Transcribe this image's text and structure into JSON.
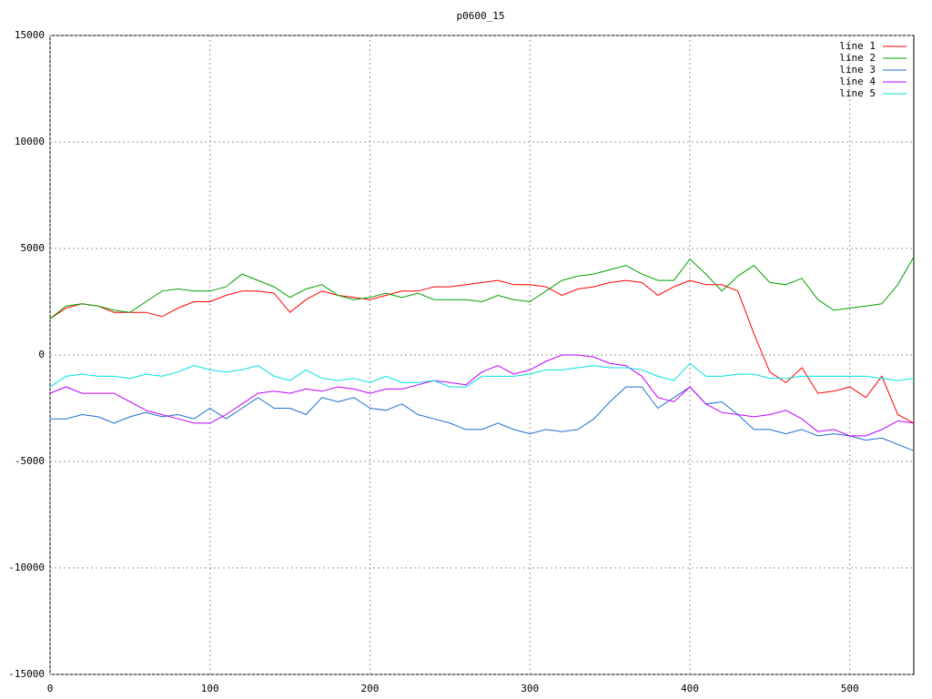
{
  "chart_data": {
    "type": "line",
    "title": "p0600_15",
    "x": [
      0,
      10,
      20,
      30,
      40,
      50,
      60,
      70,
      80,
      90,
      100,
      110,
      120,
      130,
      140,
      150,
      160,
      170,
      180,
      190,
      200,
      210,
      220,
      230,
      240,
      250,
      260,
      270,
      280,
      290,
      300,
      310,
      320,
      330,
      340,
      350,
      360,
      370,
      380,
      390,
      400,
      410,
      420,
      430,
      440,
      450,
      460,
      470,
      480,
      490,
      500,
      510,
      520,
      530,
      540
    ],
    "series": [
      {
        "name": "line 1",
        "color": "#ff0000",
        "values": [
          1700,
          2200,
          2400,
          2300,
          2000,
          2000,
          2000,
          1800,
          2200,
          2500,
          2500,
          2800,
          3000,
          3000,
          2900,
          2000,
          2600,
          3000,
          2800,
          2700,
          2600,
          2800,
          3000,
          3000,
          3200,
          3200,
          3300,
          3400,
          3500,
          3300,
          3300,
          3200,
          2800,
          3100,
          3200,
          3400,
          3500,
          3400,
          2800,
          3200,
          3500,
          3300,
          3300,
          3000,
          1000,
          -800,
          -1300,
          -600,
          -1800,
          -1700,
          -1500,
          -2000,
          -1000,
          -2800,
          -3200
        ]
      },
      {
        "name": "line 2",
        "color": "#00a000",
        "values": [
          1700,
          2300,
          2400,
          2300,
          2100,
          2000,
          2500,
          3000,
          3100,
          3000,
          3000,
          3200,
          3800,
          3500,
          3200,
          2700,
          3100,
          3300,
          2800,
          2600,
          2700,
          2900,
          2700,
          2900,
          2600,
          2600,
          2600,
          2500,
          2800,
          2600,
          2500,
          3000,
          3500,
          3700,
          3800,
          4000,
          4200,
          3800,
          3500,
          3500,
          4500,
          3800,
          3000,
          3700,
          4200,
          3400,
          3300,
          3600,
          2600,
          2100,
          2200,
          2300,
          2400,
          3300,
          4600
        ]
      },
      {
        "name": "line 3",
        "color": "#1e6ed2",
        "values": [
          -3000,
          -3000,
          -2800,
          -2900,
          -3200,
          -2900,
          -2700,
          -2900,
          -2800,
          -3000,
          -2500,
          -3000,
          -2500,
          -2000,
          -2500,
          -2500,
          -2800,
          -2000,
          -2200,
          -2000,
          -2500,
          -2600,
          -2300,
          -2800,
          -3000,
          -3200,
          -3500,
          -3500,
          -3200,
          -3500,
          -3700,
          -3500,
          -3600,
          -3500,
          -3000,
          -2200,
          -1500,
          -1500,
          -2500,
          -2000,
          -1500,
          -2300,
          -2200,
          -2800,
          -3500,
          -3500,
          -3700,
          -3500,
          -3800,
          -3700,
          -3800,
          -4000,
          -3900,
          -4200,
          -4500
        ]
      },
      {
        "name": "line 4",
        "color": "#c000ff",
        "values": [
          -1800,
          -1500,
          -1800,
          -1800,
          -1800,
          -2200,
          -2600,
          -2800,
          -3000,
          -3200,
          -3200,
          -2800,
          -2300,
          -1800,
          -1700,
          -1800,
          -1600,
          -1700,
          -1500,
          -1600,
          -1800,
          -1600,
          -1600,
          -1400,
          -1200,
          -1300,
          -1400,
          -800,
          -500,
          -900,
          -700,
          -300,
          0,
          0,
          -100,
          -400,
          -500,
          -1000,
          -2000,
          -2200,
          -1500,
          -2300,
          -2700,
          -2800,
          -2900,
          -2800,
          -2600,
          -3000,
          -3600,
          -3500,
          -3800,
          -3800,
          -3500,
          -3100,
          -3200
        ]
      },
      {
        "name": "line 5",
        "color": "#00e0e0",
        "values": [
          -1500,
          -1000,
          -900,
          -1000,
          -1000,
          -1100,
          -900,
          -1000,
          -800,
          -500,
          -700,
          -800,
          -700,
          -500,
          -1000,
          -1200,
          -700,
          -1100,
          -1200,
          -1100,
          -1300,
          -1000,
          -1300,
          -1300,
          -1200,
          -1500,
          -1500,
          -1000,
          -1000,
          -1000,
          -900,
          -700,
          -700,
          -600,
          -500,
          -600,
          -600,
          -700,
          -1000,
          -1200,
          -400,
          -1000,
          -1000,
          -900,
          -900,
          -1100,
          -1100,
          -1000,
          -1000,
          -1000,
          -1000,
          -1000,
          -1100,
          -1200,
          -1100
        ]
      }
    ],
    "xlim": [
      0,
      540
    ],
    "xticks": [
      0,
      100,
      200,
      300,
      400,
      500
    ],
    "ylim": [
      -15000,
      15000
    ],
    "yticks": [
      -15000,
      -10000,
      -5000,
      0,
      5000,
      10000,
      15000
    ],
    "grid": true,
    "legend": "top-right"
  }
}
